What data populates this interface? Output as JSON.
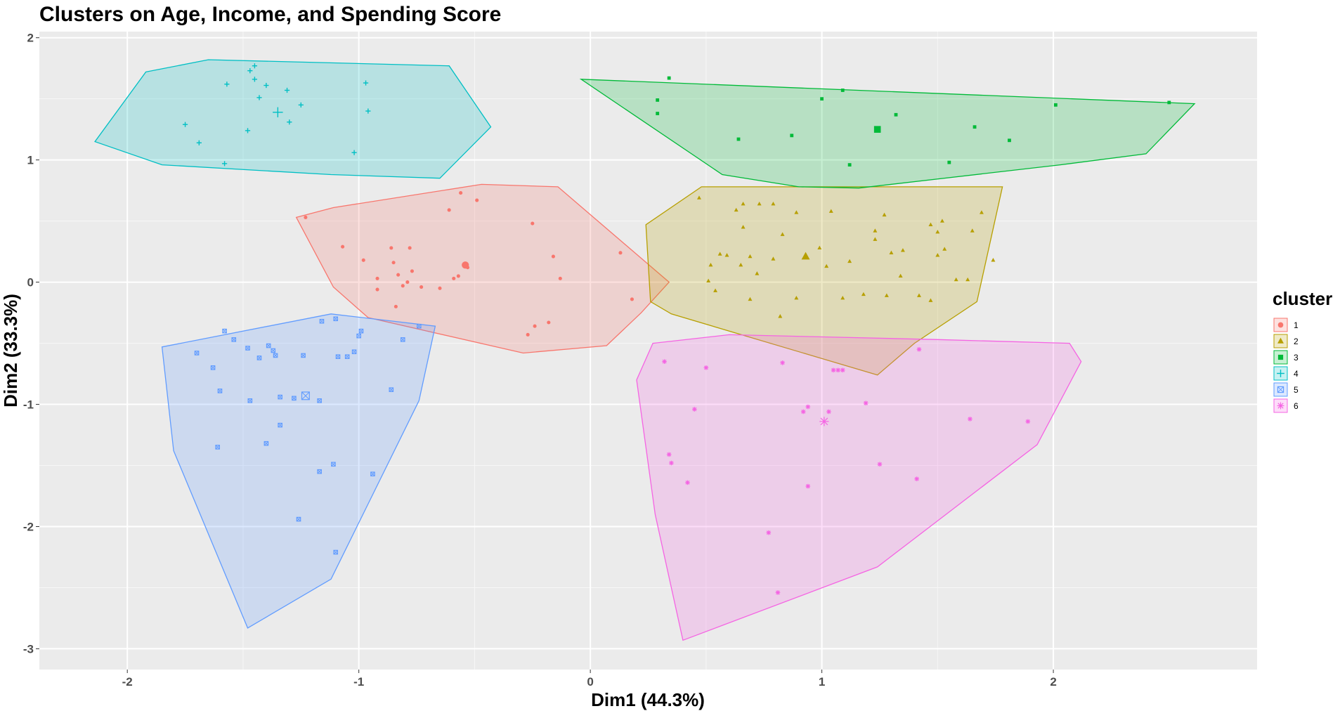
{
  "chart_data": {
    "type": "scatter",
    "title": "Clusters on Age, Income, and Spending Score",
    "xlabel": "Dim1 (44.3%)",
    "ylabel": "Dim2 (33.3%)",
    "xlim": [
      -2.38,
      2.88
    ],
    "ylim": [
      -3.17,
      2.05
    ],
    "xticks": [
      -2,
      -1,
      0,
      1,
      2
    ],
    "yticks": [
      2,
      1,
      0,
      -1,
      -2,
      -3
    ],
    "xtick_labels": [
      "-2",
      "-1",
      "0",
      "1",
      "2"
    ],
    "ytick_labels": [
      "2",
      "1",
      "0",
      "-1",
      "-2",
      "-3"
    ],
    "grid": true,
    "background": "#ebebeb",
    "legend": {
      "title": "cluster",
      "position": "right"
    },
    "series": [
      {
        "name": "1",
        "color": "#F8766D",
        "shape": "circle",
        "center": [
          -0.54,
          0.14
        ],
        "hull": [
          [
            -1.27,
            0.53
          ],
          [
            -1.11,
            0.61
          ],
          [
            -0.47,
            0.8
          ],
          [
            -0.14,
            0.78
          ],
          [
            0.34,
            0.0
          ],
          [
            0.22,
            -0.25
          ],
          [
            0.07,
            -0.52
          ],
          [
            -0.29,
            -0.58
          ],
          [
            -0.96,
            -0.29
          ],
          [
            -1.11,
            -0.04
          ]
        ],
        "points": [
          [
            -1.23,
            0.53
          ],
          [
            -1.07,
            0.29
          ],
          [
            -0.61,
            0.59
          ],
          [
            -0.49,
            0.67
          ],
          [
            -0.56,
            0.73
          ],
          [
            -0.25,
            0.48
          ],
          [
            -0.16,
            0.21
          ],
          [
            -0.13,
            0.03
          ],
          [
            0.13,
            0.24
          ],
          [
            0.18,
            -0.14
          ],
          [
            -0.98,
            0.18
          ],
          [
            -0.92,
            0.03
          ],
          [
            -0.86,
            0.28
          ],
          [
            -0.85,
            0.16
          ],
          [
            -0.78,
            0.28
          ],
          [
            -0.77,
            0.09
          ],
          [
            -0.79,
            0.0
          ],
          [
            -0.83,
            0.06
          ],
          [
            -0.59,
            0.03
          ],
          [
            -0.57,
            0.05
          ],
          [
            -0.53,
            0.12
          ],
          [
            -0.73,
            -0.04
          ],
          [
            -0.65,
            -0.05
          ],
          [
            -0.81,
            -0.03
          ],
          [
            -0.84,
            -0.2
          ],
          [
            -0.92,
            -0.06
          ],
          [
            -0.18,
            -0.33
          ],
          [
            -0.24,
            -0.36
          ],
          [
            -0.27,
            -0.43
          ]
        ]
      },
      {
        "name": "2",
        "color": "#B79F00",
        "shape": "triangle",
        "center": [
          0.93,
          0.21
        ],
        "hull": [
          [
            0.48,
            0.78
          ],
          [
            1.78,
            0.78
          ],
          [
            1.67,
            -0.16
          ],
          [
            1.4,
            -0.5
          ],
          [
            1.24,
            -0.76
          ],
          [
            0.35,
            -0.26
          ],
          [
            0.26,
            -0.16
          ],
          [
            0.24,
            0.47
          ]
        ],
        "points": [
          [
            0.47,
            0.69
          ],
          [
            0.63,
            0.59
          ],
          [
            0.66,
            0.64
          ],
          [
            0.73,
            0.64
          ],
          [
            0.79,
            0.64
          ],
          [
            0.89,
            0.57
          ],
          [
            1.04,
            0.58
          ],
          [
            1.23,
            0.42
          ],
          [
            1.27,
            0.55
          ],
          [
            1.47,
            0.47
          ],
          [
            1.52,
            0.5
          ],
          [
            1.5,
            0.41
          ],
          [
            1.65,
            0.42
          ],
          [
            1.69,
            0.57
          ],
          [
            1.74,
            0.18
          ],
          [
            0.66,
            0.45
          ],
          [
            0.83,
            0.39
          ],
          [
            0.59,
            0.22
          ],
          [
            0.56,
            0.23
          ],
          [
            0.52,
            0.14
          ],
          [
            0.65,
            0.14
          ],
          [
            0.69,
            0.21
          ],
          [
            0.72,
            0.07
          ],
          [
            0.79,
            0.19
          ],
          [
            0.99,
            0.28
          ],
          [
            1.02,
            0.13
          ],
          [
            1.12,
            0.17
          ],
          [
            1.23,
            0.35
          ],
          [
            1.3,
            0.24
          ],
          [
            1.34,
            0.05
          ],
          [
            1.35,
            0.26
          ],
          [
            1.5,
            0.22
          ],
          [
            1.53,
            0.27
          ],
          [
            1.58,
            0.02
          ],
          [
            1.63,
            0.02
          ],
          [
            0.51,
            0.01
          ],
          [
            0.54,
            -0.07
          ],
          [
            0.69,
            -0.14
          ],
          [
            0.82,
            -0.28
          ],
          [
            0.89,
            -0.13
          ],
          [
            1.09,
            -0.13
          ],
          [
            1.18,
            -0.1
          ],
          [
            1.28,
            -0.11
          ],
          [
            1.42,
            -0.11
          ],
          [
            1.47,
            -0.15
          ]
        ]
      },
      {
        "name": "3",
        "color": "#00BA38",
        "shape": "square",
        "center": [
          1.24,
          1.25
        ],
        "hull": [
          [
            -0.04,
            1.66
          ],
          [
            2.61,
            1.46
          ],
          [
            2.4,
            1.05
          ],
          [
            2.03,
            0.96
          ],
          [
            1.16,
            0.77
          ],
          [
            0.9,
            0.78
          ],
          [
            0.57,
            0.88
          ]
        ],
        "points": [
          [
            0.34,
            1.67
          ],
          [
            0.29,
            1.49
          ],
          [
            0.29,
            1.38
          ],
          [
            0.64,
            1.17
          ],
          [
            0.87,
            1.2
          ],
          [
            1.0,
            1.5
          ],
          [
            1.09,
            1.57
          ],
          [
            1.12,
            0.96
          ],
          [
            1.32,
            1.37
          ],
          [
            1.55,
            0.98
          ],
          [
            1.66,
            1.27
          ],
          [
            1.81,
            1.16
          ],
          [
            2.01,
            1.45
          ],
          [
            2.5,
            1.47
          ]
        ]
      },
      {
        "name": "4",
        "color": "#00BFC4",
        "shape": "cross",
        "center": [
          -1.35,
          1.39
        ],
        "hull": [
          [
            -1.92,
            1.72
          ],
          [
            -1.65,
            1.82
          ],
          [
            -0.61,
            1.77
          ],
          [
            -0.43,
            1.27
          ],
          [
            -0.65,
            0.85
          ],
          [
            -1.12,
            0.88
          ],
          [
            -1.85,
            0.96
          ],
          [
            -2.14,
            1.15
          ]
        ],
        "points": [
          [
            -1.47,
            1.73
          ],
          [
            -1.45,
            1.77
          ],
          [
            -1.45,
            1.66
          ],
          [
            -1.4,
            1.61
          ],
          [
            -1.57,
            1.62
          ],
          [
            -1.43,
            1.51
          ],
          [
            -1.31,
            1.57
          ],
          [
            -1.25,
            1.45
          ],
          [
            -1.3,
            1.31
          ],
          [
            -0.97,
            1.63
          ],
          [
            -0.96,
            1.4
          ],
          [
            -1.75,
            1.29
          ],
          [
            -1.69,
            1.14
          ],
          [
            -1.48,
            1.24
          ],
          [
            -1.58,
            0.97
          ],
          [
            -1.02,
            1.06
          ]
        ]
      },
      {
        "name": "5",
        "color": "#619CFF",
        "shape": "square-cross",
        "center": [
          -1.23,
          -0.93
        ],
        "hull": [
          [
            -1.85,
            -0.53
          ],
          [
            -1.12,
            -0.26
          ],
          [
            -0.67,
            -0.36
          ],
          [
            -0.74,
            -0.97
          ],
          [
            -1.12,
            -2.43
          ],
          [
            -1.48,
            -2.83
          ],
          [
            -1.8,
            -1.38
          ]
        ],
        "points": [
          [
            -1.58,
            -0.4
          ],
          [
            -1.54,
            -0.47
          ],
          [
            -1.16,
            -0.32
          ],
          [
            -1.1,
            -0.3
          ],
          [
            -0.99,
            -0.4
          ],
          [
            -1.0,
            -0.44
          ],
          [
            -0.81,
            -0.47
          ],
          [
            -0.74,
            -0.36
          ],
          [
            -1.7,
            -0.58
          ],
          [
            -1.63,
            -0.7
          ],
          [
            -1.6,
            -0.89
          ],
          [
            -1.48,
            -0.54
          ],
          [
            -1.43,
            -0.62
          ],
          [
            -1.39,
            -0.52
          ],
          [
            -1.37,
            -0.56
          ],
          [
            -1.36,
            -0.6
          ],
          [
            -1.24,
            -0.6
          ],
          [
            -1.09,
            -0.61
          ],
          [
            -1.05,
            -0.61
          ],
          [
            -1.02,
            -0.57
          ],
          [
            -1.34,
            -0.94
          ],
          [
            -1.28,
            -0.95
          ],
          [
            -1.17,
            -0.97
          ],
          [
            -1.47,
            -0.97
          ],
          [
            -1.34,
            -1.17
          ],
          [
            -0.86,
            -0.88
          ],
          [
            -1.61,
            -1.35
          ],
          [
            -1.4,
            -1.32
          ],
          [
            -1.17,
            -1.55
          ],
          [
            -1.11,
            -1.49
          ],
          [
            -0.94,
            -1.57
          ],
          [
            -1.26,
            -1.94
          ],
          [
            -1.1,
            -2.21
          ]
        ]
      },
      {
        "name": "6",
        "color": "#F564E3",
        "shape": "asterisk",
        "center": [
          1.01,
          -1.14
        ],
        "hull": [
          [
            0.27,
            -0.5
          ],
          [
            0.6,
            -0.43
          ],
          [
            1.5,
            -0.47
          ],
          [
            2.07,
            -0.5
          ],
          [
            2.12,
            -0.65
          ],
          [
            1.93,
            -1.33
          ],
          [
            1.24,
            -2.33
          ],
          [
            0.4,
            -2.93
          ],
          [
            0.28,
            -1.9
          ],
          [
            0.2,
            -0.8
          ]
        ],
        "points": [
          [
            0.32,
            -0.65
          ],
          [
            0.5,
            -0.7
          ],
          [
            0.83,
            -0.66
          ],
          [
            1.05,
            -0.72
          ],
          [
            1.07,
            -0.72
          ],
          [
            1.09,
            -0.72
          ],
          [
            1.42,
            -0.55
          ],
          [
            0.45,
            -1.04
          ],
          [
            0.92,
            -1.06
          ],
          [
            0.94,
            -1.02
          ],
          [
            1.03,
            -1.06
          ],
          [
            1.19,
            -0.99
          ],
          [
            1.64,
            -1.12
          ],
          [
            1.89,
            -1.14
          ],
          [
            0.34,
            -1.41
          ],
          [
            0.35,
            -1.48
          ],
          [
            0.42,
            -1.64
          ],
          [
            0.94,
            -1.67
          ],
          [
            1.25,
            -1.49
          ],
          [
            1.41,
            -1.61
          ],
          [
            0.77,
            -2.05
          ],
          [
            0.81,
            -2.54
          ]
        ]
      }
    ]
  }
}
